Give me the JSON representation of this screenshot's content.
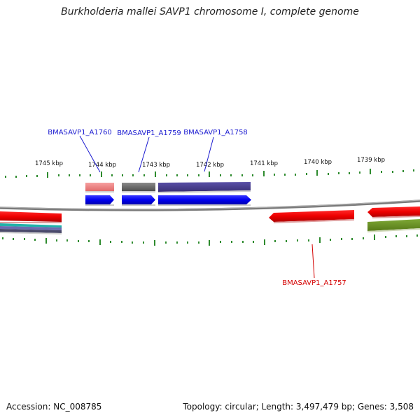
{
  "title": "Burkholderia mallei SAVP1 chromosome I, complete genome",
  "footer": {
    "accession": "Accession: NC_008785",
    "topology": "Topology: circular; Length: 3,497,479 bp; Genes: 3,508"
  },
  "ticks": [
    {
      "label": "1745 kbp"
    },
    {
      "label": "1744 kbp"
    },
    {
      "label": "1743 kbp"
    },
    {
      "label": "1742 kbp"
    },
    {
      "label": "1741 kbp"
    },
    {
      "label": "1740 kbp"
    },
    {
      "label": "1739 kbp"
    }
  ],
  "genes": [
    {
      "name": "BMASAVP1_A1760",
      "color": "#1a1ad0"
    },
    {
      "name": "BMASAVP1_A1759",
      "color": "#1a1ad0"
    },
    {
      "name": "BMASAVP1_A1758",
      "color": "#1a1ad0"
    },
    {
      "name": "BMASAVP1_A1757",
      "color": "#d40000"
    }
  ],
  "colors": {
    "forward_cds": "#0000ee",
    "reverse_cds": "#ee0000",
    "backbone": "#888888",
    "tick": "#2e8b2e",
    "pink_feature": "#f08080",
    "gray_feature": "#6a6a6a",
    "purple_feature": "#483d8b",
    "olive_feature": "#6b8e23"
  }
}
